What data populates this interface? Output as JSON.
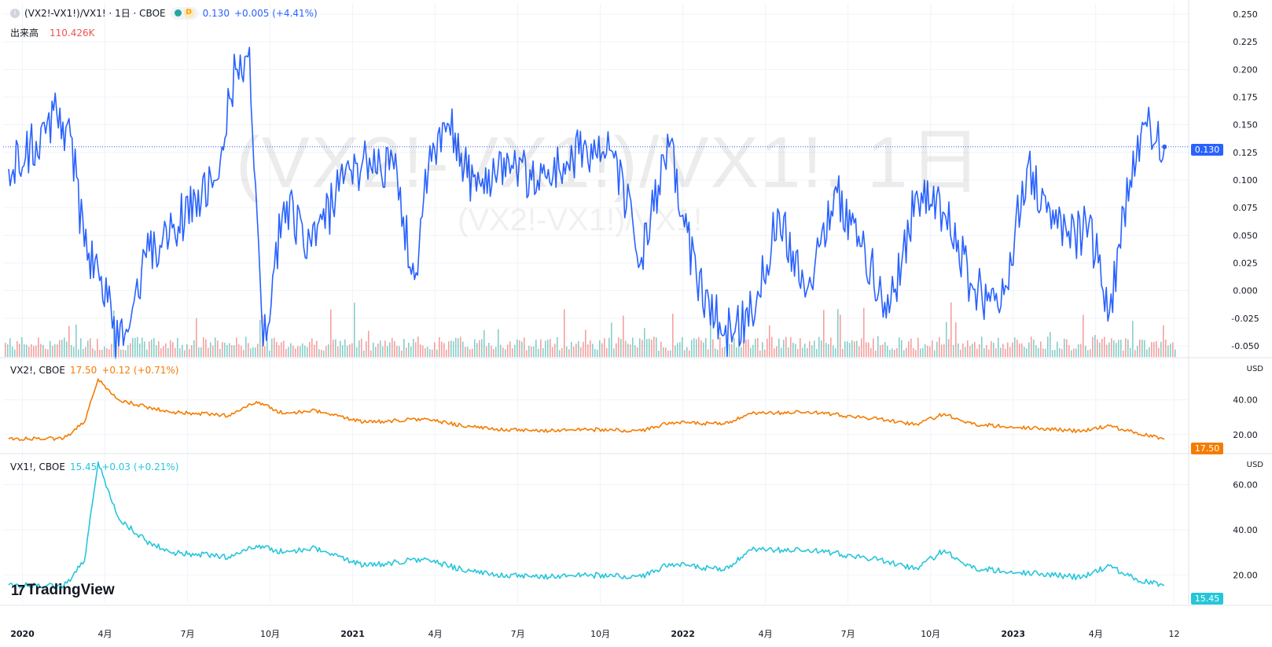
{
  "header": {
    "symbol": "(VX2!-VX1!)/VX1! · 1日 · CBOE",
    "badge_letter": "D",
    "last": "0.130",
    "change": "+0.005 (+4.41%)",
    "volume_label": "出来高",
    "volume_value": "110.426K"
  },
  "watermark": {
    "main": "(VX2!-VX1!)/VX1!, 1日",
    "sub": "(VX2!-VX1!)/VX1!"
  },
  "vx2_legend": {
    "symbol": "VX2!, CBOE",
    "last": "17.50",
    "change": "+0.12 (+0.71%)"
  },
  "vx1_legend": {
    "symbol": "VX1!, CBOE",
    "last": "15.45",
    "change": "+0.03 (+0.21%)"
  },
  "price_tags": {
    "ratio": "0.130",
    "vx2": "17.50",
    "vx1": "15.45"
  },
  "currency": "USD",
  "brand": "TradingView",
  "colors": {
    "ratio_line": "#2962ff",
    "vx2_line": "#f57c00",
    "vx1_line": "#26c6da",
    "volume_up": "#26a69a",
    "volume_down": "#ef5350"
  },
  "chart_data": [
    {
      "type": "line",
      "name": "ratio_pane",
      "title": "(VX2!-VX1!)/VX1! · 1日 · CBOE",
      "x_axis_labels": [
        "2020",
        "4月",
        "7月",
        "10月",
        "2021",
        "4月",
        "7月",
        "10月",
        "2022",
        "4月",
        "7月",
        "10月",
        "2023",
        "4月",
        "12"
      ],
      "y_ticks": [
        "0.250",
        "0.225",
        "0.200",
        "0.175",
        "0.150",
        "0.125",
        "0.100",
        "0.075",
        "0.050",
        "0.025",
        "0.000",
        "-0.025",
        "-0.050"
      ],
      "ylim": [
        -0.05,
        0.25
      ],
      "grid": true,
      "series": [
        {
          "name": "(VX2!-VX1!)/VX1!",
          "x": [
            "2019-12",
            "2020-01",
            "2020-02",
            "2020-02",
            "2020-03",
            "2020-03",
            "2020-04",
            "2020-05",
            "2020-06",
            "2020-07",
            "2020-08",
            "2020-08",
            "2020-09",
            "2020-09",
            "2020-10",
            "2020-11",
            "2020-12",
            "2021-01",
            "2021-02",
            "2021-03",
            "2021-03",
            "2021-04",
            "2021-05",
            "2021-06",
            "2021-07",
            "2021-08",
            "2021-09",
            "2021-10",
            "2021-11",
            "2021-12",
            "2022-01",
            "2022-02",
            "2022-03",
            "2022-04",
            "2022-05",
            "2022-06",
            "2022-07",
            "2022-08",
            "2022-09",
            "2022-10",
            "2022-11",
            "2022-12",
            "2023-01",
            "2023-02",
            "2023-03",
            "2023-03",
            "2023-04",
            "2023-05",
            "2023-05",
            "2023-06"
          ],
          "values": [
            0.11,
            0.135,
            0.16,
            0.14,
            0.04,
            0.02,
            -0.05,
            0.03,
            0.06,
            0.08,
            0.13,
            0.2,
            0.22,
            -0.05,
            0.08,
            0.04,
            0.09,
            0.12,
            0.11,
            0.01,
            0.11,
            0.15,
            0.09,
            0.12,
            0.1,
            0.11,
            0.13,
            0.12,
            0.03,
            0.13,
            0.01,
            -0.04,
            -0.02,
            0.07,
            0.0,
            0.09,
            0.04,
            -0.02,
            0.09,
            0.07,
            0.005,
            -0.02,
            0.11,
            0.06,
            0.05,
            0.06,
            -0.02,
            0.1,
            0.15,
            0.13
          ]
        }
      ],
      "volume": {
        "name": "出来高",
        "last": "110.426K"
      }
    },
    {
      "type": "line",
      "name": "vx2_pane",
      "title": "VX2!, CBOE",
      "y_ticks": [
        "40.00",
        "20.00"
      ],
      "ylim": [
        14,
        62
      ],
      "series": [
        {
          "name": "VX2!",
          "x": [
            "2019-12",
            "2020-02",
            "2020-03",
            "2020-03",
            "2020-04",
            "2020-05",
            "2020-06",
            "2020-08",
            "2020-09",
            "2020-10",
            "2020-11",
            "2021-01",
            "2021-03",
            "2021-05",
            "2021-07",
            "2021-09",
            "2021-11",
            "2021-12",
            "2022-02",
            "2022-03",
            "2022-05",
            "2022-07",
            "2022-09",
            "2022-10",
            "2022-11",
            "2023-01",
            "2023-03",
            "2023-04",
            "2023-05",
            "2023-06"
          ],
          "values": [
            17.5,
            17.8,
            27,
            52,
            40,
            36,
            33,
            31,
            39,
            32,
            34,
            27,
            29,
            24,
            22,
            23,
            22,
            27,
            26,
            32,
            33,
            30,
            26,
            32,
            26,
            24,
            22,
            25,
            21,
            17.5
          ]
        }
      ]
    },
    {
      "type": "line",
      "name": "vx1_pane",
      "title": "VX1!, CBOE",
      "y_ticks": [
        "60.00",
        "40.00",
        "20.00"
      ],
      "ylim": [
        10,
        72
      ],
      "series": [
        {
          "name": "VX1!",
          "x": [
            "2019-12",
            "2020-02",
            "2020-03",
            "2020-03",
            "2020-04",
            "2020-05",
            "2020-06",
            "2020-08",
            "2020-09",
            "2020-10",
            "2020-11",
            "2021-01",
            "2021-03",
            "2021-05",
            "2021-07",
            "2021-09",
            "2021-11",
            "2021-12",
            "2022-02",
            "2022-03",
            "2022-05",
            "2022-07",
            "2022-09",
            "2022-10",
            "2022-11",
            "2023-01",
            "2023-03",
            "2023-04",
            "2023-05",
            "2023-06"
          ],
          "values": [
            15.5,
            15.0,
            26,
            70,
            45,
            35,
            30,
            28,
            33,
            30,
            32,
            24,
            27,
            21,
            19,
            20,
            19,
            25,
            22,
            31,
            31,
            28,
            23,
            31,
            23,
            21,
            19,
            24,
            18,
            15.45
          ]
        }
      ]
    }
  ]
}
